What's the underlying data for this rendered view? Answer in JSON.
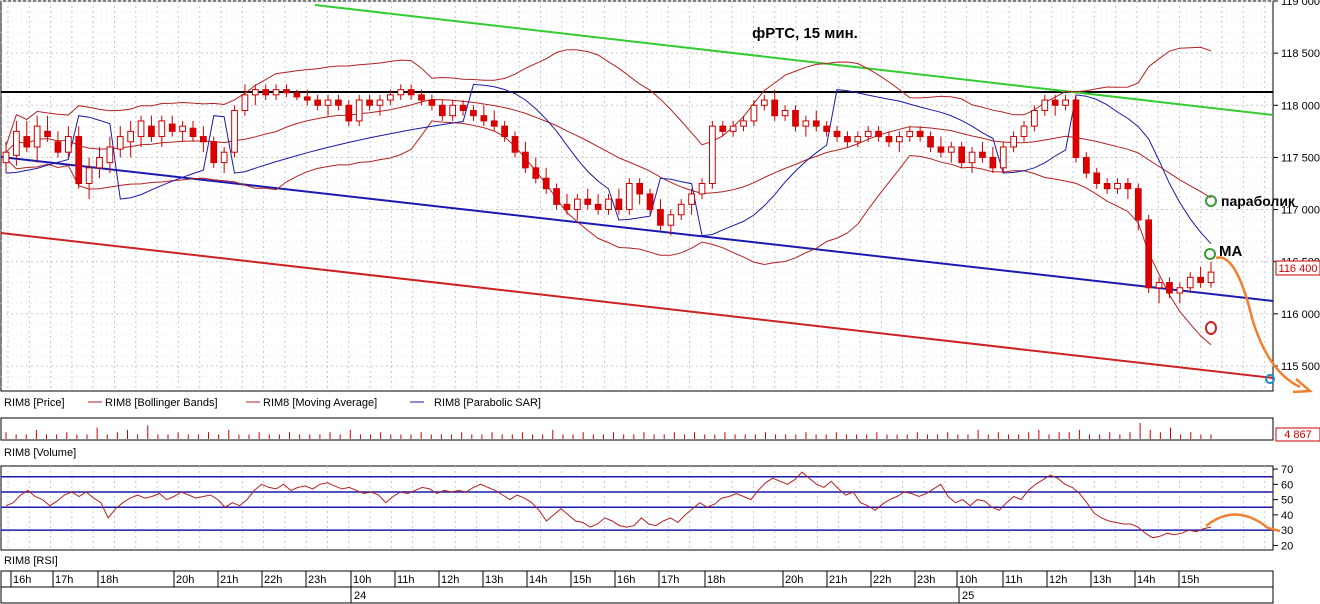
{
  "chart_data": [
    {
      "type": "candlestick",
      "title": "фРТС, 15 мин.",
      "yaxis": {
        "ticks": [
          "119 000",
          "118 500",
          "118 000",
          "117 500",
          "117 000",
          "116 500",
          "116 000",
          "115 500"
        ],
        "tick_values": [
          119000,
          118500,
          118000,
          117500,
          117000,
          116500,
          116000,
          115500
        ],
        "ylim": [
          115260,
          119000
        ]
      },
      "last_price_label": "116 400",
      "last_price": 116400,
      "legend": [
        {
          "name": "RIM8 [Price]",
          "color": "#cc0000"
        },
        {
          "name": "RIM8 [Bollinger Bands]",
          "color": "#b22222"
        },
        {
          "name": "RIM8 [Moving Average]",
          "color": "#b22222"
        },
        {
          "name": "RIM8 [Parabolic SAR]",
          "color": "#1a1aa6"
        }
      ],
      "annotations": [
        {
          "text": "параболик",
          "color": "#3a9a3a"
        },
        {
          "text": "МА",
          "color": "#3a9a3a"
        }
      ],
      "candles": [
        [
          117450,
          117650,
          117350,
          117550
        ],
        [
          117520,
          117850,
          117420,
          117750
        ],
        [
          117700,
          117850,
          117550,
          117600
        ],
        [
          117600,
          117900,
          117450,
          117800
        ],
        [
          117750,
          117900,
          117650,
          117700
        ],
        [
          117650,
          117750,
          117500,
          117550
        ],
        [
          117550,
          117800,
          117500,
          117700
        ],
        [
          117700,
          117800,
          117200,
          117250
        ],
        [
          117250,
          117500,
          117100,
          117400
        ],
        [
          117400,
          117600,
          117300,
          117500
        ],
        [
          117450,
          117700,
          117350,
          117600
        ],
        [
          117580,
          117800,
          117500,
          117700
        ],
        [
          117650,
          117850,
          117500,
          117750
        ],
        [
          117700,
          117900,
          117600,
          117850
        ],
        [
          117800,
          117900,
          117650,
          117700
        ],
        [
          117700,
          117900,
          117600,
          117850
        ],
        [
          117820,
          117900,
          117700,
          117750
        ],
        [
          117750,
          117850,
          117650,
          117800
        ],
        [
          117780,
          117850,
          117650,
          117700
        ],
        [
          117700,
          117800,
          117550,
          117650
        ],
        [
          117650,
          117700,
          117400,
          117450
        ],
        [
          117450,
          117600,
          117350,
          117550
        ],
        [
          117550,
          118000,
          117500,
          117950
        ],
        [
          117950,
          118200,
          117900,
          118100
        ],
        [
          118100,
          118200,
          118000,
          118150
        ],
        [
          118150,
          118200,
          118050,
          118100
        ],
        [
          118100,
          118200,
          118050,
          118150
        ],
        [
          118150,
          118200,
          118080,
          118120
        ],
        [
          118120,
          118150,
          118050,
          118080
        ],
        [
          118080,
          118150,
          118000,
          118050
        ],
        [
          118050,
          118100,
          117950,
          118000
        ],
        [
          118000,
          118100,
          117900,
          118050
        ],
        [
          118050,
          118100,
          117950,
          118000
        ],
        [
          118000,
          118050,
          117800,
          117850
        ],
        [
          117850,
          118100,
          117800,
          118050
        ],
        [
          118050,
          118100,
          117950,
          118000
        ],
        [
          118000,
          118100,
          117900,
          118050
        ],
        [
          118050,
          118150,
          118000,
          118100
        ],
        [
          118100,
          118200,
          118050,
          118150
        ],
        [
          118150,
          118200,
          118050,
          118100
        ],
        [
          118100,
          118150,
          118000,
          118050
        ],
        [
          118050,
          118100,
          117950,
          118000
        ],
        [
          118000,
          118050,
          117850,
          117900
        ],
        [
          117900,
          118050,
          117850,
          118000
        ],
        [
          118000,
          118050,
          117900,
          117950
        ],
        [
          117950,
          118000,
          117850,
          117900
        ],
        [
          117900,
          118000,
          117800,
          117850
        ],
        [
          117850,
          117950,
          117750,
          117800
        ],
        [
          117800,
          117850,
          117650,
          117700
        ],
        [
          117700,
          117750,
          117500,
          117550
        ],
        [
          117550,
          117650,
          117350,
          117400
        ],
        [
          117400,
          117500,
          117250,
          117300
        ],
        [
          117300,
          117400,
          117150,
          117200
        ],
        [
          117200,
          117250,
          117000,
          117050
        ],
        [
          117050,
          117150,
          116950,
          117000
        ],
        [
          117000,
          117150,
          116900,
          117100
        ],
        [
          117100,
          117200,
          117000,
          117050
        ],
        [
          117050,
          117150,
          116950,
          117000
        ],
        [
          117000,
          117150,
          116950,
          117100
        ],
        [
          117100,
          117200,
          116950,
          117000
        ],
        [
          117000,
          117300,
          116950,
          117250
        ],
        [
          117250,
          117300,
          117050,
          117150
        ],
        [
          117150,
          117200,
          116950,
          117000
        ],
        [
          117000,
          117100,
          116800,
          116850
        ],
        [
          116850,
          117000,
          116750,
          116950
        ],
        [
          116950,
          117100,
          116900,
          117050
        ],
        [
          117050,
          117200,
          116950,
          117150
        ],
        [
          117150,
          117300,
          117100,
          117250
        ],
        [
          117250,
          117850,
          117200,
          117800
        ],
        [
          117800,
          117850,
          117700,
          117750
        ],
        [
          117750,
          117850,
          117700,
          117800
        ],
        [
          117800,
          117900,
          117750,
          117850
        ],
        [
          117850,
          118050,
          117800,
          118000
        ],
        [
          118000,
          118100,
          117950,
          118050
        ],
        [
          118050,
          118150,
          117850,
          117900
        ],
        [
          117900,
          118000,
          117850,
          117950
        ],
        [
          117950,
          118000,
          117750,
          117800
        ],
        [
          117800,
          117900,
          117700,
          117850
        ],
        [
          117850,
          117950,
          117750,
          117800
        ],
        [
          117800,
          117850,
          117700,
          117750
        ],
        [
          117750,
          117800,
          117650,
          117700
        ],
        [
          117700,
          117750,
          117600,
          117650
        ],
        [
          117650,
          117750,
          117600,
          117700
        ],
        [
          117700,
          117800,
          117650,
          117750
        ],
        [
          117750,
          117800,
          117650,
          117700
        ],
        [
          117700,
          117750,
          117600,
          117650
        ],
        [
          117650,
          117750,
          117550,
          117700
        ],
        [
          117700,
          117800,
          117650,
          117750
        ],
        [
          117750,
          117800,
          117650,
          117700
        ],
        [
          117700,
          117750,
          117550,
          117600
        ],
        [
          117600,
          117700,
          117500,
          117550
        ],
        [
          117550,
          117650,
          117450,
          117600
        ],
        [
          117600,
          117650,
          117400,
          117450
        ],
        [
          117450,
          117600,
          117350,
          117550
        ],
        [
          117550,
          117650,
          117450,
          117500
        ],
        [
          117500,
          117600,
          117350,
          117400
        ],
        [
          117400,
          117650,
          117350,
          117600
        ],
        [
          117600,
          117750,
          117550,
          117700
        ],
        [
          117700,
          117850,
          117650,
          117800
        ],
        [
          117800,
          118000,
          117750,
          117950
        ],
        [
          117950,
          118100,
          117900,
          118050
        ],
        [
          118050,
          118100,
          117900,
          118000
        ],
        [
          118000,
          118100,
          117950,
          118050
        ],
        [
          118050,
          118100,
          117450,
          117500
        ],
        [
          117500,
          117550,
          117300,
          117350
        ],
        [
          117350,
          117400,
          117200,
          117250
        ],
        [
          117250,
          117300,
          117150,
          117200
        ],
        [
          117200,
          117300,
          117150,
          117250
        ],
        [
          117250,
          117300,
          117100,
          117200
        ],
        [
          117200,
          117250,
          116800,
          116900
        ],
        [
          116900,
          116950,
          116200,
          116250
        ],
        [
          116250,
          116350,
          116100,
          116300
        ],
        [
          116300,
          116350,
          116150,
          116200
        ],
        [
          116200,
          116300,
          116100,
          116250
        ],
        [
          116250,
          116400,
          116200,
          116350
        ],
        [
          116350,
          116450,
          116250,
          116300
        ],
        [
          116300,
          116500,
          116250,
          116400
        ]
      ]
    },
    {
      "type": "bar",
      "title": "RIM8 [Volume]",
      "last_value_label": "4 867",
      "values": [
        3,
        2,
        2,
        4,
        2,
        2,
        3,
        2,
        2,
        5,
        2,
        3,
        4,
        2,
        6,
        2,
        2,
        3,
        2,
        2,
        3,
        2,
        4,
        2,
        2,
        3,
        2,
        2,
        3,
        2,
        2,
        2,
        3,
        2,
        4,
        2,
        2,
        3,
        2,
        2,
        2,
        3,
        2,
        2,
        2,
        3,
        2,
        2,
        3,
        2,
        2,
        3,
        2,
        2,
        4,
        2,
        2,
        3,
        2,
        2,
        3,
        2,
        2,
        3,
        2,
        2,
        3,
        2,
        3,
        2,
        2,
        3,
        2,
        2,
        2,
        3,
        2,
        2,
        2,
        3,
        2,
        2,
        3,
        2,
        2,
        2,
        3,
        2,
        2,
        2,
        3,
        2,
        2,
        3,
        2,
        2,
        4,
        2,
        3,
        2,
        2,
        3,
        4,
        2,
        3,
        3,
        4,
        2,
        2,
        3,
        2,
        3,
        7,
        4,
        3,
        5,
        2,
        3,
        2,
        2
      ]
    },
    {
      "type": "line",
      "title": "RIM8 [RSI]",
      "yaxis": {
        "ticks": [
          "70",
          "60",
          "50",
          "40",
          "30",
          "20"
        ],
        "tick_values": [
          70,
          60,
          50,
          40,
          30,
          20
        ],
        "ylim": [
          17,
          72
        ]
      },
      "levels": [
        65,
        55,
        45,
        30
      ],
      "values": [
        46,
        48,
        53,
        56,
        52,
        50,
        46,
        49,
        53,
        55,
        52,
        55,
        51,
        48,
        38,
        44,
        48,
        51,
        53,
        51,
        52,
        54,
        50,
        52,
        55,
        53,
        51,
        52,
        53,
        50,
        45,
        48,
        46,
        50,
        56,
        60,
        58,
        57,
        60,
        56,
        58,
        59,
        57,
        60,
        61,
        59,
        57,
        58,
        56,
        54,
        55,
        53,
        48,
        52,
        55,
        54,
        56,
        58,
        57,
        54,
        56,
        55,
        56,
        55,
        58,
        60,
        58,
        56,
        53,
        50,
        53,
        51,
        48,
        43,
        36,
        40,
        44,
        40,
        36,
        35,
        32,
        34,
        38,
        36,
        33,
        32,
        33,
        38,
        34,
        33,
        36,
        38,
        35,
        40,
        44,
        48,
        45,
        47,
        51,
        52,
        54,
        52,
        50,
        56,
        61,
        64,
        62,
        60,
        63,
        68,
        64,
        60,
        58,
        62,
        57,
        53,
        55,
        48,
        46,
        43,
        47,
        50,
        52,
        55,
        54,
        52,
        54,
        57,
        60,
        52,
        48,
        50,
        46,
        50,
        49,
        45,
        43,
        48,
        52,
        50,
        56,
        60,
        63,
        66,
        64,
        60,
        58,
        54,
        48,
        41,
        38,
        36,
        35,
        34,
        34,
        32,
        28,
        25,
        26,
        28,
        27,
        28,
        30,
        29,
        31,
        32
      ]
    }
  ],
  "time_axis": {
    "hour_labels": [
      "16h",
      "17h",
      "18h",
      "20h",
      "21h",
      "22h",
      "23h",
      "10h",
      "11h",
      "12h",
      "13h",
      "14h",
      "15h",
      "16h",
      "17h",
      "18h",
      "20h",
      "21h",
      "22h",
      "23h",
      "10h",
      "11h",
      "12h",
      "13h",
      "14h",
      "15h"
    ],
    "day_labels": [
      "24",
      "25"
    ]
  }
}
